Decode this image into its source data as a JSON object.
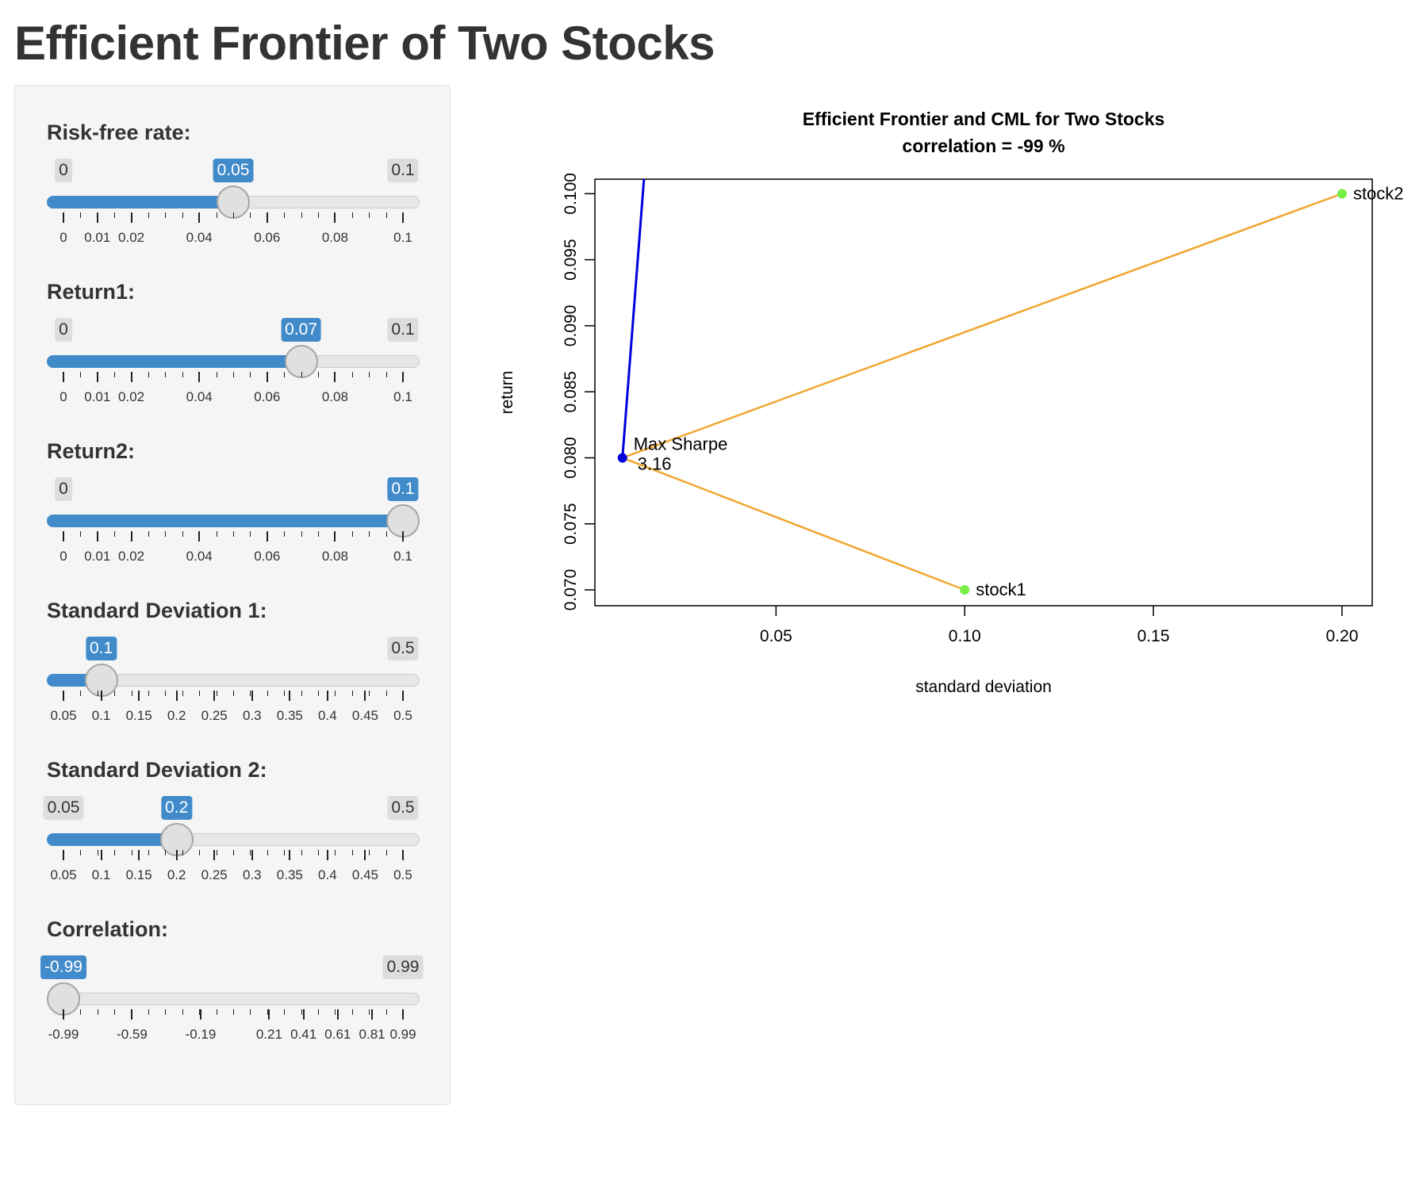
{
  "page": {
    "title": "Efficient Frontier of Two Stocks"
  },
  "sliders": [
    {
      "id": "rf",
      "label": "Risk-free rate:",
      "min": 0,
      "max": 0.1,
      "value": 0.05,
      "min_label": "0",
      "max_label": "0.1",
      "value_label": "0.05",
      "ticks": [
        "0",
        "0.01",
        "0.02",
        "0.04",
        "0.06",
        "0.08",
        "0.1"
      ]
    },
    {
      "id": "r1",
      "label": "Return1:",
      "min": 0,
      "max": 0.1,
      "value": 0.07,
      "min_label": "0",
      "max_label": "0.1",
      "value_label": "0.07",
      "ticks": [
        "0",
        "0.01",
        "0.02",
        "0.04",
        "0.06",
        "0.08",
        "0.1"
      ]
    },
    {
      "id": "r2",
      "label": "Return2:",
      "min": 0,
      "max": 0.1,
      "value": 0.1,
      "min_label": "0",
      "max_label": "0.1",
      "value_label": "0.1",
      "ticks": [
        "0",
        "0.01",
        "0.02",
        "0.04",
        "0.06",
        "0.08",
        "0.1"
      ]
    },
    {
      "id": "sd1",
      "label": "Standard Deviation 1:",
      "min": 0.05,
      "max": 0.5,
      "value": 0.1,
      "min_label": "0.05",
      "max_label": "0.5",
      "value_label": "0.1",
      "ticks": [
        "0.05",
        "0.1",
        "0.15",
        "0.2",
        "0.25",
        "0.3",
        "0.35",
        "0.4",
        "0.45",
        "0.5"
      ]
    },
    {
      "id": "sd2",
      "label": "Standard Deviation 2:",
      "min": 0.05,
      "max": 0.5,
      "value": 0.2,
      "min_label": "0.05",
      "max_label": "0.5",
      "value_label": "0.2",
      "ticks": [
        "0.05",
        "0.1",
        "0.15",
        "0.2",
        "0.25",
        "0.3",
        "0.35",
        "0.4",
        "0.45",
        "0.5"
      ]
    },
    {
      "id": "corr",
      "label": "Correlation:",
      "min": -0.99,
      "max": 0.99,
      "value": -0.99,
      "min_label": "-0.99",
      "max_label": "0.99",
      "value_label": "-0.99",
      "ticks": [
        "-0.99",
        "-0.59",
        "-0.19",
        "0.21",
        "0.41",
        "0.61",
        "0.81",
        "0.99"
      ]
    }
  ],
  "chart_data": {
    "type": "line",
    "title": "Efficient Frontier and CML for Two Stocks",
    "subtitle": "correlation = -99 %",
    "xlabel": "standard deviation",
    "ylabel": "return",
    "xlim": [
      0.002,
      0.208
    ],
    "ylim": [
      0.0688,
      0.1011
    ],
    "x_ticks": [
      "0.05",
      "0.10",
      "0.15",
      "0.20"
    ],
    "y_ticks": [
      "0.070",
      "0.075",
      "0.080",
      "0.085",
      "0.090",
      "0.095",
      "0.100"
    ],
    "grid": false,
    "series": [
      {
        "x": [
          0.1,
          0.0093,
          0.2
        ],
        "y": [
          0.07,
          0.08,
          0.1
        ],
        "color": "#f0a830"
      },
      {
        "x": [
          0.0093,
          0.015
        ],
        "y": [
          0.08,
          0.1011
        ],
        "color": "#0000dd"
      }
    ],
    "points": [
      {
        "label": "stock1",
        "x": 0.1,
        "y": 0.07,
        "color": "#77ee44"
      },
      {
        "label": "stock2",
        "x": 0.2,
        "y": 0.1,
        "color": "#77ee44"
      }
    ],
    "tangency": {
      "label": "Max Sharpe",
      "value": "3.16",
      "x": 0.0093,
      "y": 0.08,
      "color": "#0000dd"
    }
  }
}
